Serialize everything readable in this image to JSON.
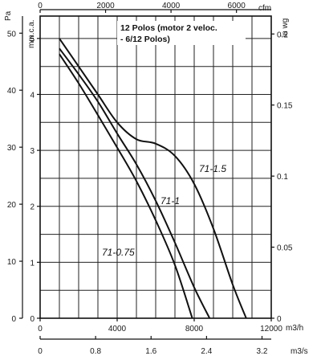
{
  "chart_data": {
    "type": "line",
    "title_lines": [
      "12 Polos (motor 2 veloc.",
      "- 6/12 Polos)"
    ],
    "axes": {
      "x_bottom_m3h": {
        "unit": "m3/h",
        "range": [
          0,
          12000
        ],
        "ticks": [
          "0",
          "4000",
          "8000",
          "12000"
        ]
      },
      "x_bottom_m3s": {
        "unit": "m3/s",
        "range": [
          0,
          3.333
        ],
        "ticks": [
          "0",
          "0.8",
          "1.6",
          "2.4",
          "3.2"
        ]
      },
      "x_top_cfm": {
        "unit": "cfm",
        "range": [
          0,
          7063
        ],
        "ticks": [
          "0",
          "2000",
          "4000",
          "6000"
        ]
      },
      "y_left_pa": {
        "unit": "Pa",
        "range": [
          0,
          53
        ],
        "ticks": [
          "0",
          "10",
          "20",
          "30",
          "40",
          "50"
        ]
      },
      "y_left_mmca": {
        "unit": "mm.c.a.",
        "range": [
          0,
          5.4
        ],
        "ticks": [
          "0",
          "1",
          "2",
          "3",
          "4",
          "5"
        ]
      },
      "y_right_inwg": {
        "unit": "in wg",
        "range": [
          0,
          0.2126
        ],
        "ticks": [
          "0",
          "0.05",
          "0.1",
          "0.15",
          "0.2"
        ]
      }
    },
    "grid": true,
    "series": [
      {
        "name": "71-1.5",
        "x": [
          1000,
          2000,
          3000,
          4000,
          5000,
          6000,
          7000,
          8000,
          9000,
          10000,
          10700
        ],
        "y": [
          5.0,
          4.5,
          4.0,
          3.5,
          3.2,
          3.12,
          2.9,
          2.4,
          1.6,
          0.6,
          0.0
        ]
      },
      {
        "name": "71-1",
        "x": [
          1000,
          2000,
          3000,
          4000,
          5000,
          6000,
          7000,
          8000,
          8800
        ],
        "y": [
          4.82,
          4.36,
          3.87,
          3.3,
          2.75,
          2.1,
          1.35,
          0.55,
          0.0
        ]
      },
      {
        "name": "71-0.75",
        "x": [
          1000,
          2000,
          3000,
          4000,
          5000,
          6000,
          7000,
          7900
        ],
        "y": [
          4.72,
          4.2,
          3.63,
          3.05,
          2.45,
          1.75,
          0.95,
          0.0
        ]
      }
    ],
    "curve_labels": [
      "71-1.5",
      "71-1",
      "71-0.75"
    ]
  }
}
